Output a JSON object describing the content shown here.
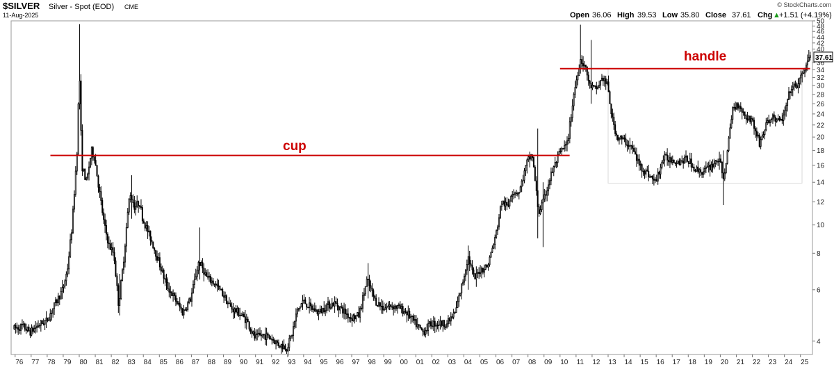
{
  "header": {
    "symbol": "$SILVER",
    "description": "Silver - Spot (EOD)",
    "exchange": "CME",
    "date": "11-Aug-2025",
    "copyright": "© StockCharts.com",
    "ohlc": {
      "open_label": "Open",
      "open": "36.06",
      "high_label": "High",
      "high": "39.53",
      "low_label": "Low",
      "low": "35.80",
      "close_label": "Close",
      "close": "37.61",
      "chg_label": "Chg",
      "chg": "+1.51 (+4.19%)",
      "chg_arrow": "▲"
    }
  },
  "chart_data": {
    "type": "candlestick",
    "scale": "log",
    "ylim": [
      3.6,
      50
    ],
    "y_ticks": [
      4,
      6,
      8,
      10,
      12,
      14,
      16,
      18,
      20,
      22,
      24,
      26,
      28,
      30,
      32,
      34,
      36,
      40,
      42,
      44,
      46,
      48,
      50
    ],
    "x_ticks": [
      "76",
      "77",
      "78",
      "79",
      "80",
      "81",
      "82",
      "83",
      "84",
      "85",
      "86",
      "87",
      "88",
      "89",
      "90",
      "91",
      "92",
      "93",
      "94",
      "95",
      "96",
      "97",
      "98",
      "99",
      "00",
      "01",
      "02",
      "03",
      "04",
      "05",
      "06",
      "07",
      "08",
      "09",
      "10",
      "11",
      "12",
      "13",
      "14",
      "15",
      "16",
      "17",
      "18",
      "19",
      "20",
      "21",
      "22",
      "23",
      "24",
      "25"
    ],
    "last_value_label": "37.61",
    "annotations": [
      {
        "text": "cup",
        "type": "horizontal_line",
        "level": 17.3,
        "from": 1978.2,
        "to": 2010.6
      },
      {
        "text": "handle",
        "type": "horizontal_line",
        "level": 34.3,
        "from": 2010.0,
        "to": 2025.6
      }
    ],
    "range_box": {
      "from": 2013.0,
      "to": 2025.1,
      "high": 34.3,
      "low": 13.9
    },
    "anchors": [
      [
        1975.9,
        4.4
      ],
      [
        1976.5,
        4.5
      ],
      [
        1977.0,
        4.3
      ],
      [
        1977.5,
        4.55
      ],
      [
        1978.0,
        4.7
      ],
      [
        1978.5,
        5.3
      ],
      [
        1979.0,
        6.0
      ],
      [
        1979.3,
        7.0
      ],
      [
        1979.6,
        10.0
      ],
      [
        1979.9,
        18.0
      ],
      [
        1980.05,
        34.0
      ],
      [
        1980.2,
        16.0
      ],
      [
        1980.5,
        14.0
      ],
      [
        1980.8,
        18.0
      ],
      [
        1981.0,
        17.0
      ],
      [
        1981.3,
        13.0
      ],
      [
        1981.6,
        10.0
      ],
      [
        1981.9,
        8.5
      ],
      [
        1982.2,
        8.0
      ],
      [
        1982.5,
        5.3
      ],
      [
        1982.8,
        7.5
      ],
      [
        1983.0,
        10.0
      ],
      [
        1983.2,
        13.0
      ],
      [
        1983.5,
        11.5
      ],
      [
        1983.8,
        12.0
      ],
      [
        1984.0,
        10.5
      ],
      [
        1984.5,
        9.0
      ],
      [
        1985.0,
        7.5
      ],
      [
        1985.5,
        6.2
      ],
      [
        1986.0,
        5.6
      ],
      [
        1986.5,
        5.0
      ],
      [
        1987.0,
        5.6
      ],
      [
        1987.5,
        7.5
      ],
      [
        1987.8,
        7.0
      ],
      [
        1988.0,
        6.6
      ],
      [
        1988.5,
        6.3
      ],
      [
        1989.0,
        5.8
      ],
      [
        1989.5,
        5.2
      ],
      [
        1990.0,
        5.0
      ],
      [
        1990.5,
        4.7
      ],
      [
        1991.0,
        4.1
      ],
      [
        1991.5,
        4.2
      ],
      [
        1992.0,
        4.1
      ],
      [
        1992.5,
        3.9
      ],
      [
        1993.0,
        3.8
      ],
      [
        1993.3,
        4.2
      ],
      [
        1993.6,
        5.0
      ],
      [
        1994.0,
        5.5
      ],
      [
        1994.5,
        5.2
      ],
      [
        1995.0,
        5.0
      ],
      [
        1995.5,
        5.3
      ],
      [
        1996.0,
        5.4
      ],
      [
        1996.5,
        5.1
      ],
      [
        1997.0,
        4.8
      ],
      [
        1997.5,
        4.9
      ],
      [
        1998.0,
        6.5
      ],
      [
        1998.5,
        5.5
      ],
      [
        1999.0,
        5.2
      ],
      [
        1999.5,
        5.3
      ],
      [
        2000.0,
        5.2
      ],
      [
        2000.5,
        5.0
      ],
      [
        2001.0,
        4.6
      ],
      [
        2001.5,
        4.3
      ],
      [
        2002.0,
        4.6
      ],
      [
        2002.5,
        4.6
      ],
      [
        2003.0,
        4.6
      ],
      [
        2003.5,
        5.0
      ],
      [
        2004.0,
        6.5
      ],
      [
        2004.3,
        7.8
      ],
      [
        2004.7,
        6.5
      ],
      [
        2005.0,
        7.0
      ],
      [
        2005.5,
        7.2
      ],
      [
        2006.0,
        9.0
      ],
      [
        2006.4,
        12.0
      ],
      [
        2006.8,
        11.5
      ],
      [
        2007.0,
        13.0
      ],
      [
        2007.5,
        13.0
      ],
      [
        2008.0,
        16.5
      ],
      [
        2008.3,
        17.5
      ],
      [
        2008.7,
        11.0
      ],
      [
        2009.0,
        12.0
      ],
      [
        2009.5,
        15.0
      ],
      [
        2010.0,
        17.5
      ],
      [
        2010.5,
        19.0
      ],
      [
        2010.9,
        28.0
      ],
      [
        2011.3,
        37.0
      ],
      [
        2011.6,
        35.0
      ],
      [
        2011.9,
        30.0
      ],
      [
        2012.3,
        29.0
      ],
      [
        2012.7,
        32.0
      ],
      [
        2013.0,
        30.0
      ],
      [
        2013.3,
        23.0
      ],
      [
        2013.6,
        20.0
      ],
      [
        2014.0,
        19.5
      ],
      [
        2014.5,
        18.5
      ],
      [
        2015.0,
        16.0
      ],
      [
        2015.5,
        15.0
      ],
      [
        2016.0,
        14.0
      ],
      [
        2016.5,
        17.0
      ],
      [
        2017.0,
        16.8
      ],
      [
        2017.5,
        16.5
      ],
      [
        2018.0,
        16.8
      ],
      [
        2018.5,
        15.5
      ],
      [
        2019.0,
        15.2
      ],
      [
        2019.5,
        16.0
      ],
      [
        2020.0,
        17.0
      ],
      [
        2020.2,
        14.0
      ],
      [
        2020.5,
        18.0
      ],
      [
        2020.8,
        25.0
      ],
      [
        2021.2,
        26.0
      ],
      [
        2021.6,
        23.5
      ],
      [
        2022.0,
        23.0
      ],
      [
        2022.5,
        19.0
      ],
      [
        2022.9,
        22.0
      ],
      [
        2023.3,
        23.5
      ],
      [
        2023.7,
        22.5
      ],
      [
        2024.0,
        23.5
      ],
      [
        2024.4,
        29.0
      ],
      [
        2024.8,
        30.0
      ],
      [
        2025.1,
        32.0
      ],
      [
        2025.4,
        35.5
      ],
      [
        2025.6,
        37.61
      ]
    ],
    "spikes": [
      [
        1980.05,
        48.7,
        33.0
      ],
      [
        2011.3,
        48.5,
        33.0
      ],
      [
        1983.3,
        14.8,
        10.5
      ],
      [
        2020.2,
        18.0,
        11.7
      ],
      [
        2008.6,
        21.4,
        9.0
      ],
      [
        2008.9,
        14.0,
        8.4
      ],
      [
        1982.5,
        6.8,
        4.9
      ],
      [
        1987.5,
        9.8,
        6.5
      ],
      [
        1998.0,
        7.4,
        5.6
      ],
      [
        2004.3,
        8.5,
        6.0
      ],
      [
        2011.9,
        43.0,
        26.0
      ]
    ]
  }
}
